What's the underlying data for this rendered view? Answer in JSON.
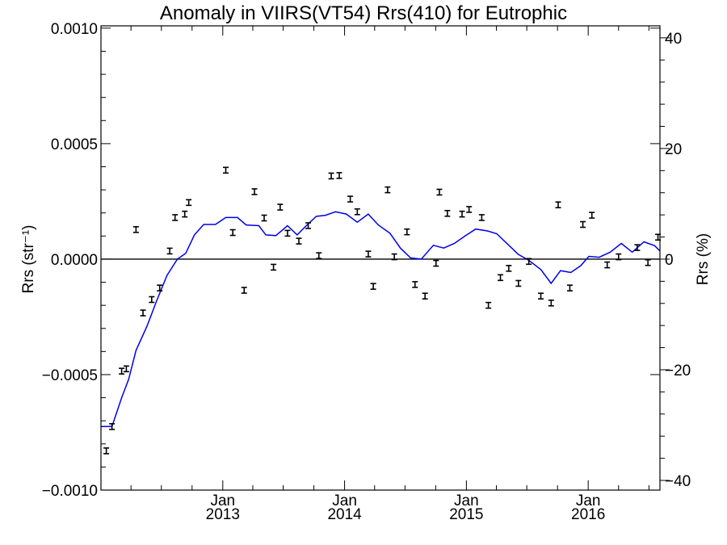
{
  "chart_data": {
    "type": "scatter",
    "title": "Anomaly in VIIRS(VT54) Rrs(410) for Eutrophic",
    "ylabel_left": "Rrs (str⁻¹)",
    "ylabel_right": "Rrs (%)",
    "xlabel": "",
    "y_left_range": [
      -0.001,
      0.00101
    ],
    "y_right_range": [
      -41.75,
      42.17
    ],
    "x_range": [
      "2012-01-02",
      "2016-08-03"
    ],
    "y_left_ticks": [
      {
        "value": 0.001,
        "label": "0.0010"
      },
      {
        "value": 0.0005,
        "label": "0.0005"
      },
      {
        "value": 0.0,
        "label": "0.0000"
      },
      {
        "value": -0.0005,
        "label": "−0.0005"
      },
      {
        "value": -0.001,
        "label": "−0.0010"
      }
    ],
    "y_right_ticks": [
      {
        "value": 40,
        "label": "40"
      },
      {
        "value": 20,
        "label": "20"
      },
      {
        "value": 0,
        "label": "0"
      },
      {
        "value": -20,
        "label": "−20"
      },
      {
        "value": -40,
        "label": "−40"
      }
    ],
    "x_ticks": [
      {
        "date": "2013-01-01",
        "month": "Jan",
        "year": "2013"
      },
      {
        "date": "2014-01-01",
        "month": "Jan",
        "year": "2014"
      },
      {
        "date": "2015-01-01",
        "month": "Jan",
        "year": "2015"
      },
      {
        "date": "2016-01-01",
        "month": "Jan",
        "year": "2016"
      }
    ],
    "zero_line": 0,
    "series": [
      {
        "kind": "errorbar-points",
        "color": "#000000",
        "points": [
          {
            "x": "2012-01-18",
            "y": -0.00083
          },
          {
            "x": "2012-02-04",
            "y": -0.000725
          },
          {
            "x": "2012-03-04",
            "y": -0.000485
          },
          {
            "x": "2012-03-18",
            "y": -0.000475
          },
          {
            "x": "2012-04-16",
            "y": 0.000128
          },
          {
            "x": "2012-05-07",
            "y": -0.000233
          },
          {
            "x": "2012-06-02",
            "y": -0.000175
          },
          {
            "x": "2012-06-26",
            "y": -0.000125
          },
          {
            "x": "2012-07-26",
            "y": 3.5e-05
          },
          {
            "x": "2012-08-11",
            "y": 0.00018
          },
          {
            "x": "2012-09-09",
            "y": 0.000195
          },
          {
            "x": "2012-09-21",
            "y": 0.000245
          },
          {
            "x": "2013-01-10",
            "y": 0.000385
          },
          {
            "x": "2013-01-31",
            "y": 0.000115
          },
          {
            "x": "2013-03-06",
            "y": -0.000135
          },
          {
            "x": "2013-04-06",
            "y": 0.000292
          },
          {
            "x": "2013-05-05",
            "y": 0.000178
          },
          {
            "x": "2013-06-02",
            "y": -3.5e-05
          },
          {
            "x": "2013-06-22",
            "y": 0.000225
          },
          {
            "x": "2013-07-14",
            "y": 0.000112
          },
          {
            "x": "2013-08-17",
            "y": 7.8e-05
          },
          {
            "x": "2013-09-14",
            "y": 0.000145
          },
          {
            "x": "2013-10-16",
            "y": 1.5e-05
          },
          {
            "x": "2013-11-22",
            "y": 0.00036
          },
          {
            "x": "2013-12-16",
            "y": 0.000362
          },
          {
            "x": "2014-01-18",
            "y": 0.00026
          },
          {
            "x": "2014-02-08",
            "y": 0.000205
          },
          {
            "x": "2014-03-13",
            "y": 2.2e-05
          },
          {
            "x": "2014-03-28",
            "y": -0.000118
          },
          {
            "x": "2014-05-10",
            "y": 0.0003
          },
          {
            "x": "2014-05-30",
            "y": 1e-05
          },
          {
            "x": "2014-07-07",
            "y": 0.000118
          },
          {
            "x": "2014-07-31",
            "y": -0.00011
          },
          {
            "x": "2014-08-30",
            "y": -0.00016
          },
          {
            "x": "2014-10-02",
            "y": -1.8e-05
          },
          {
            "x": "2014-10-12",
            "y": 0.00029
          },
          {
            "x": "2014-11-05",
            "y": 0.000198
          },
          {
            "x": "2014-12-19",
            "y": 0.000195
          },
          {
            "x": "2015-01-09",
            "y": 0.000215
          },
          {
            "x": "2015-02-16",
            "y": 0.00018
          },
          {
            "x": "2015-03-08",
            "y": -0.0002
          },
          {
            "x": "2015-04-13",
            "y": -8e-05
          },
          {
            "x": "2015-05-08",
            "y": -4e-05
          },
          {
            "x": "2015-06-06",
            "y": -0.000105
          },
          {
            "x": "2015-07-07",
            "y": -1e-05
          },
          {
            "x": "2015-08-12",
            "y": -0.00016
          },
          {
            "x": "2015-09-12",
            "y": -0.00019
          },
          {
            "x": "2015-10-03",
            "y": 0.000235
          },
          {
            "x": "2015-11-07",
            "y": -0.000125
          },
          {
            "x": "2015-12-16",
            "y": 0.00015
          },
          {
            "x": "2016-01-12",
            "y": 0.00019
          },
          {
            "x": "2016-02-27",
            "y": -2.5e-05
          },
          {
            "x": "2016-04-01",
            "y": 1e-05
          },
          {
            "x": "2016-05-27",
            "y": 5e-05
          },
          {
            "x": "2016-06-28",
            "y": -1.5e-05
          },
          {
            "x": "2016-07-28",
            "y": 9.5e-05
          }
        ]
      },
      {
        "kind": "line",
        "color": "#0000ee",
        "points": [
          {
            "x": "2012-01-02",
            "y": -0.000725
          },
          {
            "x": "2012-02-04",
            "y": -0.000725
          },
          {
            "x": "2012-03-04",
            "y": -0.0006
          },
          {
            "x": "2012-03-25",
            "y": -0.00052
          },
          {
            "x": "2012-04-16",
            "y": -0.000395
          },
          {
            "x": "2012-05-19",
            "y": -0.00029
          },
          {
            "x": "2012-06-17",
            "y": -0.00018
          },
          {
            "x": "2012-07-18",
            "y": -7e-05
          },
          {
            "x": "2012-08-18",
            "y": 0.0
          },
          {
            "x": "2012-09-12",
            "y": 2.5e-05
          },
          {
            "x": "2012-10-08",
            "y": 0.000105
          },
          {
            "x": "2012-11-05",
            "y": 0.00015
          },
          {
            "x": "2012-12-10",
            "y": 0.00015
          },
          {
            "x": "2013-01-10",
            "y": 0.00018
          },
          {
            "x": "2013-02-14",
            "y": 0.00018
          },
          {
            "x": "2013-03-12",
            "y": 0.000148
          },
          {
            "x": "2013-04-19",
            "y": 0.000145
          },
          {
            "x": "2013-05-10",
            "y": 0.000105
          },
          {
            "x": "2013-06-09",
            "y": 0.000102
          },
          {
            "x": "2013-07-14",
            "y": 0.000145
          },
          {
            "x": "2013-08-12",
            "y": 0.000105
          },
          {
            "x": "2013-09-05",
            "y": 0.00014
          },
          {
            "x": "2013-10-08",
            "y": 0.000185
          },
          {
            "x": "2013-11-05",
            "y": 0.00019
          },
          {
            "x": "2013-12-05",
            "y": 0.000205
          },
          {
            "x": "2014-01-06",
            "y": 0.000195
          },
          {
            "x": "2014-02-08",
            "y": 0.00016
          },
          {
            "x": "2014-03-13",
            "y": 0.000195
          },
          {
            "x": "2014-04-12",
            "y": 0.000148
          },
          {
            "x": "2014-05-17",
            "y": 0.000112
          },
          {
            "x": "2014-06-17",
            "y": 4.8e-05
          },
          {
            "x": "2014-07-18",
            "y": 5e-06
          },
          {
            "x": "2014-08-19",
            "y": 0.0
          },
          {
            "x": "2014-09-24",
            "y": 6e-05
          },
          {
            "x": "2014-10-25",
            "y": 4.8e-05
          },
          {
            "x": "2014-11-26",
            "y": 6.8e-05
          },
          {
            "x": "2014-12-28",
            "y": 0.0001
          },
          {
            "x": "2015-01-29",
            "y": 0.00013
          },
          {
            "x": "2015-03-05",
            "y": 0.000122
          },
          {
            "x": "2015-04-02",
            "y": 0.00011
          },
          {
            "x": "2015-05-08",
            "y": 6e-05
          },
          {
            "x": "2015-06-06",
            "y": 2e-05
          },
          {
            "x": "2015-07-07",
            "y": -5e-06
          },
          {
            "x": "2015-08-12",
            "y": -4.5e-05
          },
          {
            "x": "2015-09-12",
            "y": -0.000105
          },
          {
            "x": "2015-10-10",
            "y": -5e-05
          },
          {
            "x": "2015-11-10",
            "y": -5.8e-05
          },
          {
            "x": "2015-12-10",
            "y": -2.8e-05
          },
          {
            "x": "2016-01-03",
            "y": 1.2e-05
          },
          {
            "x": "2016-02-03",
            "y": 8e-06
          },
          {
            "x": "2016-03-07",
            "y": 3e-05
          },
          {
            "x": "2016-04-09",
            "y": 6.8e-05
          },
          {
            "x": "2016-05-12",
            "y": 3e-05
          },
          {
            "x": "2016-06-16",
            "y": 7.5e-05
          },
          {
            "x": "2016-07-18",
            "y": 5.8e-05
          },
          {
            "x": "2016-08-03",
            "y": 3.5e-05
          }
        ]
      }
    ]
  }
}
